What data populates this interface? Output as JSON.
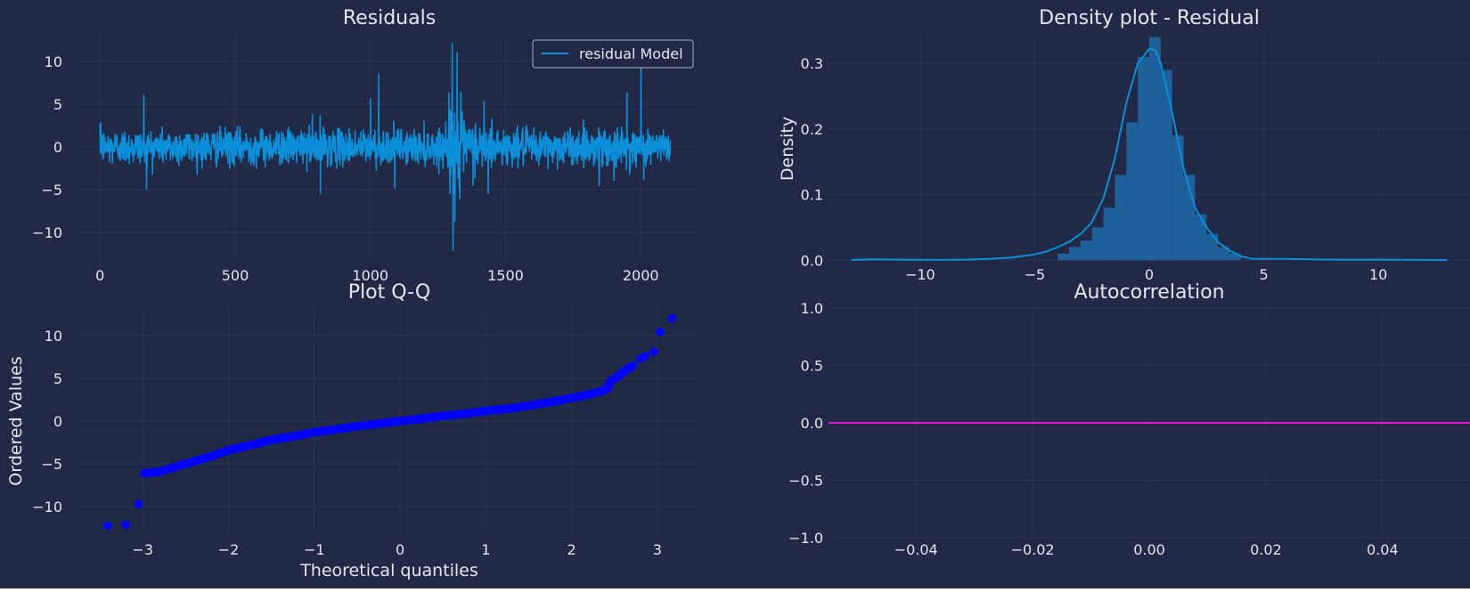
{
  "theme": {
    "background": "#212946",
    "grid": "#2a3459",
    "text": "#e6e6ee",
    "residual_line": "#0a8fd8",
    "qq_points": "#0000ff",
    "acf_line": "#e81ad8",
    "density_fill": "#1d6aa8",
    "kde_line": "#0a8fd8"
  },
  "chart_data": [
    {
      "type": "line",
      "title": "Residuals",
      "xlabel": "",
      "ylabel": "",
      "xlim": [
        -80,
        2220
      ],
      "ylim": [
        -13.2,
        13.2
      ],
      "xticks": [
        0,
        500,
        1000,
        1500,
        2000
      ],
      "yticks": [
        10,
        5,
        0,
        -5,
        -10
      ],
      "grid": true,
      "legend": {
        "placement": "top-right",
        "entries": [
          "residual Model"
        ]
      },
      "series": [
        {
          "name": "residual Model",
          "n_points": 2110,
          "typical_amplitude": 1.0,
          "x_range": [
            0,
            2110
          ],
          "spikes": [
            {
              "x": 3,
              "y": 2.8
            },
            {
              "x": 162,
              "y": 6.0
            },
            {
              "x": 172,
              "y": -4.9
            },
            {
              "x": 785,
              "y": 3.8
            },
            {
              "x": 815,
              "y": -5.5
            },
            {
              "x": 1000,
              "y": 5.6
            },
            {
              "x": 1030,
              "y": 8.5
            },
            {
              "x": 1090,
              "y": -4.8
            },
            {
              "x": 1290,
              "y": 6.3
            },
            {
              "x": 1302,
              "y": 12.1
            },
            {
              "x": 1305,
              "y": -12.1
            },
            {
              "x": 1312,
              "y": -8.7
            },
            {
              "x": 1320,
              "y": 11.0
            },
            {
              "x": 1330,
              "y": -6.0
            },
            {
              "x": 1420,
              "y": 5.3
            },
            {
              "x": 1435,
              "y": -5.4
            },
            {
              "x": 1845,
              "y": -4.5
            },
            {
              "x": 1900,
              "y": -3.9
            },
            {
              "x": 1948,
              "y": 6.3
            },
            {
              "x": 2000,
              "y": 10.3
            },
            {
              "x": 2010,
              "y": -3.8
            }
          ]
        }
      ]
    },
    {
      "type": "area",
      "title": "Density plot - Residual",
      "xlabel": "",
      "ylabel": "Density",
      "xlim": [
        -14.0,
        14.0
      ],
      "ylim": [
        -0.005,
        0.345
      ],
      "xticks": [
        -10,
        -5,
        0,
        5,
        10
      ],
      "yticks": [
        0.3,
        0.2,
        0.1,
        0.0
      ],
      "grid": true,
      "histogram": {
        "bin_edges": [
          -4.0,
          -3.5,
          -3.0,
          -2.5,
          -2.0,
          -1.5,
          -1.0,
          -0.5,
          0.0,
          0.5,
          1.0,
          1.5,
          2.0,
          2.5,
          3.0,
          3.5,
          4.0
        ],
        "heights": [
          0.01,
          0.02,
          0.03,
          0.05,
          0.08,
          0.13,
          0.21,
          0.31,
          0.34,
          0.29,
          0.19,
          0.13,
          0.07,
          0.04,
          0.02,
          0.01
        ]
      },
      "kde": {
        "x": [
          -13.0,
          -12.0,
          -11.0,
          -10.0,
          -9.0,
          -8.0,
          -7.0,
          -6.0,
          -5.0,
          -4.5,
          -4.0,
          -3.5,
          -3.0,
          -2.5,
          -2.0,
          -1.5,
          -1.0,
          -0.5,
          0.0,
          0.25,
          0.5,
          1.0,
          1.5,
          2.0,
          2.5,
          3.0,
          3.5,
          4.0,
          4.5,
          5.0,
          6.0,
          7.0,
          8.0,
          9.0,
          10.0,
          11.0,
          12.0,
          13.0
        ],
        "y": [
          0.0005,
          0.0015,
          0.001,
          0.0008,
          0.0008,
          0.001,
          0.002,
          0.004,
          0.009,
          0.013,
          0.02,
          0.028,
          0.04,
          0.058,
          0.095,
          0.155,
          0.24,
          0.3,
          0.322,
          0.32,
          0.3,
          0.225,
          0.14,
          0.08,
          0.05,
          0.028,
          0.015,
          0.006,
          0.002,
          0.002,
          0.002,
          0.0015,
          0.001,
          0.001,
          0.001,
          0.0008,
          0.0005,
          0.0003
        ]
      }
    },
    {
      "type": "scatter",
      "title": "Plot Q-Q",
      "xlabel": "Theoretical quantiles",
      "ylabel": "Ordered Values",
      "xlim": [
        -3.75,
        3.5
      ],
      "ylim": [
        -13.2,
        13.2
      ],
      "xticks": [
        -3,
        -2,
        -1,
        0,
        1,
        2,
        3
      ],
      "yticks": [
        10,
        5,
        0,
        -5,
        -10
      ],
      "grid": true,
      "curve": {
        "x": [
          -2.98,
          -2.8,
          -2.5,
          -2.2,
          -2.0,
          -1.7,
          -1.5,
          -1.2,
          -1.0,
          -0.7,
          -0.5,
          -0.2,
          0.0,
          0.3,
          0.5,
          0.8,
          1.0,
          1.3,
          1.5,
          1.8,
          2.0,
          2.2,
          2.35,
          2.42,
          2.45,
          2.55,
          2.65,
          2.72
        ],
        "y": [
          -6.1,
          -5.9,
          -5.0,
          -4.1,
          -3.4,
          -2.7,
          -2.2,
          -1.7,
          -1.3,
          -0.9,
          -0.6,
          -0.25,
          0.0,
          0.35,
          0.6,
          0.9,
          1.2,
          1.5,
          1.8,
          2.3,
          2.7,
          3.1,
          3.5,
          3.8,
          4.6,
          5.3,
          6.1,
          6.5
        ]
      },
      "points": [
        {
          "x": -3.41,
          "y": -12.2
        },
        {
          "x": -3.2,
          "y": -12.1
        },
        {
          "x": -3.05,
          "y": -9.7
        },
        {
          "x": 2.8,
          "y": 7.3
        },
        {
          "x": 2.86,
          "y": 7.6
        },
        {
          "x": 2.96,
          "y": 8.1
        },
        {
          "x": 3.03,
          "y": 10.4
        },
        {
          "x": 3.17,
          "y": 12.0
        }
      ]
    },
    {
      "type": "line",
      "title": "Autocorrelation",
      "xlabel": "",
      "ylabel": "",
      "xlim": [
        -0.055,
        0.055
      ],
      "ylim": [
        -1.0,
        1.0
      ],
      "xticks": [
        -0.04,
        -0.02,
        0.0,
        0.02,
        0.04
      ],
      "xtick_labels": [
        "−0.04",
        "−0.02",
        "0.00",
        "0.02",
        "0.04"
      ],
      "yticks": [
        1.0,
        0.5,
        0.0,
        -0.5,
        -1.0
      ],
      "ytick_labels": [
        "1.0",
        "0.5",
        "0.0",
        "−0.5",
        "−1.0"
      ],
      "grid": true,
      "series": [
        {
          "name": "",
          "x": [
            -0.055,
            0.055
          ],
          "y": [
            0.0,
            0.0
          ]
        }
      ]
    }
  ]
}
